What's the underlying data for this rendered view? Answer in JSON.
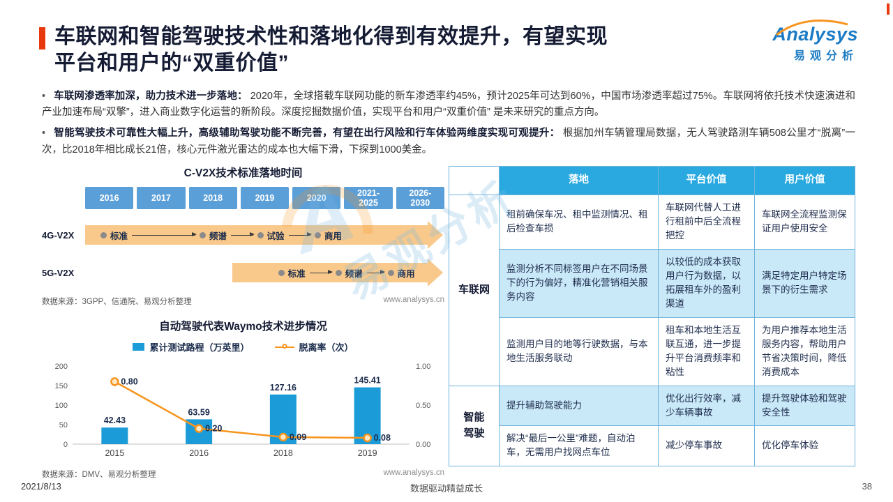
{
  "meta": {
    "bullet_char": "•",
    "date": "2021/8/13",
    "footer_center": "数据驱动精益成长",
    "page_number": "38"
  },
  "header": {
    "title_line1": "车联网和智能驾驶技术性和落地化得到有效提升，有望实现",
    "title_line2": "平台和用户的“双重价值”",
    "logo_en": "Analysys",
    "logo_cn": "易观分析"
  },
  "bullets": [
    {
      "bold": "车联网渗透率加深，助力技术进一步落地：",
      "text": "2020年，全球搭载车联网功能的新车渗透率约45%，预计2025年可达到60%，中国市场渗透率超过75%。车联网将依托技术快速演进和产业加速布局“双擎”，进入商业数字化运营的新阶段。深度挖掘数据价值，实现平台和用户“双重价值” 是未来研究的重点方向。"
    },
    {
      "bold": "智能驾驶技术可靠性大幅上升，高级辅助驾驶功能不断完善，有望在出行风险和行车体验两维度实现可观提升：",
      "text": "根据加州车辆管理局数据，无人驾驶路测车辆508公里才“脱离”一次，比2018年相比成长21倍，核心元件激光雷达的成本也大幅下滑，下探到1000美金。"
    }
  ],
  "timeline": {
    "title": "C-V2X技术标准落地时间",
    "years": [
      "2016",
      "2017",
      "2018",
      "2019",
      "2020",
      "2021-\n2025",
      "2026-\n2030"
    ],
    "rows": [
      {
        "label": "4G-V2X",
        "milestones": [
          "标准",
          "频谱",
          "试验",
          "商用"
        ]
      },
      {
        "label": "5G-V2X",
        "milestones": [
          "标准",
          "频谱",
          "商用"
        ]
      }
    ],
    "source": "数据来源：3GPP、信通院、易观分析整理",
    "url": "www.analysys.cn"
  },
  "chart_data": {
    "type": "bar",
    "title": "自动驾驶代表Waymo技术进步情况",
    "categories": [
      "2015",
      "2016",
      "2018",
      "2019"
    ],
    "series": [
      {
        "name": "累计测试路程（万英里）",
        "type": "bar",
        "axis": "left",
        "color": "#1B9CD8",
        "values": [
          42.43,
          63.59,
          127.16,
          145.41
        ]
      },
      {
        "name": "脱离率（次）",
        "type": "line",
        "axis": "right",
        "color": "#F7941E",
        "values": [
          0.8,
          0.2,
          0.09,
          0.08
        ]
      }
    ],
    "left_axis": {
      "max": 200,
      "ticks": [
        0,
        50,
        100,
        150,
        200
      ]
    },
    "right_axis": {
      "max": 1,
      "ticks": [
        "0.00",
        "0.50",
        "1.00"
      ]
    },
    "legend_position": "top",
    "grid": false,
    "source": "数据来源：DMV、易观分析整理",
    "url": "www.analysys.cn"
  },
  "table": {
    "headers": [
      "落地",
      "平台价值",
      "用户价值"
    ],
    "groups": [
      {
        "name": "车联网",
        "rows": [
          {
            "landing": "租前确保车况、租中监测情况、租后检查车损",
            "platform": "车联网代替人工进行租前中后全流程把控",
            "user": "车联网全流程监测保证用户使用安全",
            "highlight": false
          },
          {
            "landing": "监测分析不同标签用户在不同场景下的行为偏好，精准化营销相关服务内容",
            "platform": "以较低的成本获取用户行为数据，以拓展租车外的盈利渠道",
            "user": "满足特定用户特定场景下的衍生需求",
            "highlight": true
          },
          {
            "landing": "监测用户目的地等行驶数据，与本地生活服务联动",
            "platform": "租车和本地生活互联互通，进一步提升平台消费频率和粘性",
            "user": "为用户推荐本地生活服务内容，帮助用户节省决策时间，降低消费成本",
            "highlight": false
          }
        ]
      },
      {
        "name": "智能\n驾驶",
        "rows": [
          {
            "landing": "提升辅助驾驶能力",
            "platform": "优化出行效率，减少车辆事故",
            "user": "提升驾驶体验和驾驶安全性",
            "highlight": true
          },
          {
            "landing": "解决“最后一公里”难题，自动泊车，无需用户找网点车位",
            "platform": "减少停车事故",
            "user": "优化停车体验",
            "highlight": false
          }
        ]
      }
    ]
  },
  "colors": {
    "accent_red": "#E8380D",
    "brand_blue": "#1B7BC4",
    "table_header_blue": "#29A9E0",
    "table_row_light_blue": "#C9E8F8",
    "timeline_year_blue": "#5B9FD9",
    "timeline_arrow_orange": "#F9C98B",
    "bar_blue": "#1B9CD8",
    "line_orange": "#F7941E"
  }
}
